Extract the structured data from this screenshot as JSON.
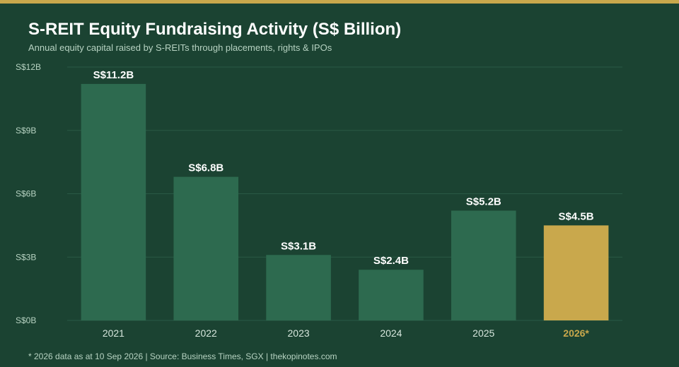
{
  "header": {
    "title": "S-REIT Equity Fundraising Activity (S$ Billion)",
    "subtitle": "Annual equity capital raised by S-REITs through placements, rights & IPOs"
  },
  "footer": {
    "note": "* 2026 data as at 10 Sep 2026  |  Source: Business Times, SGX  |  thekopinotes.com"
  },
  "colors": {
    "background": "#1b4332",
    "bar": "#2d6a4f",
    "highlight": "#c9a84c",
    "grid": "#2a5a45"
  },
  "chart_data": {
    "type": "bar",
    "title": "S-REIT Equity Fundraising Activity (S$ Billion)",
    "categories": [
      "2021",
      "2022",
      "2023",
      "2024",
      "2025",
      "2026*"
    ],
    "values": [
      11.2,
      6.8,
      3.1,
      2.4,
      5.2,
      4.5
    ],
    "data_labels": [
      "S$11.2B",
      "S$6.8B",
      "S$3.1B",
      "S$2.4B",
      "S$5.2B",
      "S$4.5B"
    ],
    "highlight_index": 5,
    "ylim": [
      0,
      12
    ],
    "yticks": [
      0,
      3,
      6,
      9,
      12
    ],
    "ytick_labels": [
      "S$0B",
      "S$3B",
      "S$6B",
      "S$9B",
      "S$12B"
    ],
    "grid": true,
    "legend": "none"
  }
}
